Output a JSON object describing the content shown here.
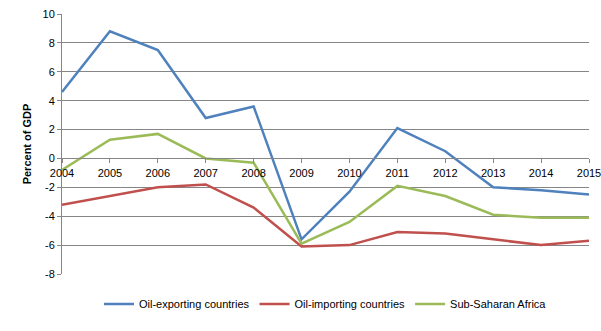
{
  "chart_data": {
    "type": "line",
    "y_label": "Percent of GDP",
    "categories": [
      "2004",
      "2005",
      "2006",
      "2007",
      "2008",
      "2009",
      "2010",
      "2011",
      "2012",
      "2013",
      "2014",
      "2015"
    ],
    "series": [
      {
        "name": "Oil-exporting countries",
        "color": "#4F81BD",
        "values": [
          4.6,
          8.8,
          7.5,
          2.8,
          3.6,
          -5.6,
          -2.3,
          2.1,
          0.5,
          -2.0,
          -2.2,
          -2.5
        ]
      },
      {
        "name": "Oil-importing countries",
        "color": "#C0504D",
        "values": [
          -3.2,
          -2.6,
          -2.0,
          -1.8,
          -3.4,
          -6.1,
          -6.0,
          -5.1,
          -5.2,
          -5.6,
          -6.0,
          -5.7
        ]
      },
      {
        "name": "Sub-Saharan Africa",
        "color": "#9BBB59",
        "values": [
          -0.8,
          1.3,
          1.7,
          0.0,
          -0.3,
          -5.9,
          -4.4,
          -1.9,
          -2.6,
          -3.9,
          -4.1,
          -4.1
        ]
      }
    ],
    "ylim": [
      -8,
      10
    ],
    "yticks": [
      -8,
      -6,
      -4,
      -2,
      0,
      2,
      4,
      6,
      8,
      10
    ],
    "grid": true,
    "legend": "bottom"
  }
}
